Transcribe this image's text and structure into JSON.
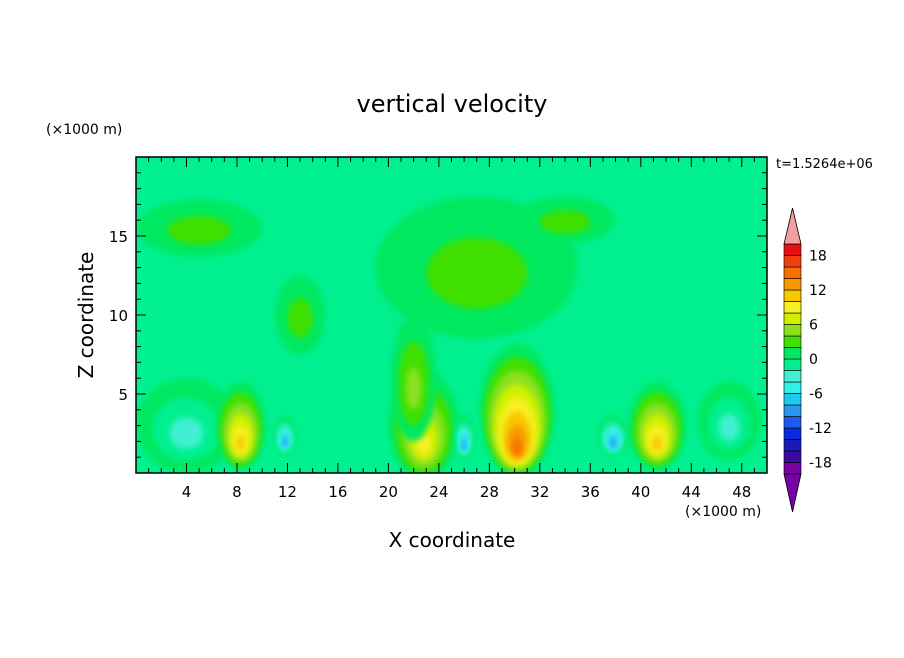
{
  "chart_data": {
    "type": "heatmap",
    "title": "vertical velocity",
    "xlabel": "X coordinate",
    "ylabel": "Z coordinate",
    "x_unit": "(×1000 m)",
    "y_unit": "(×1000 m)",
    "time_label": "t=1.5264e+06",
    "xlim": [
      0,
      50
    ],
    "ylim": [
      0,
      20
    ],
    "x_ticks": [
      4,
      8,
      12,
      16,
      20,
      24,
      28,
      32,
      36,
      40,
      44,
      48
    ],
    "y_ticks": [
      5,
      10,
      15
    ],
    "colorbar": {
      "levels": [
        -20,
        -18,
        -16,
        -14,
        -12,
        -10,
        -8,
        -6,
        -4,
        -2,
        0,
        2,
        4,
        6,
        8,
        10,
        12,
        14,
        16,
        18,
        20
      ],
      "labels": [
        18,
        12,
        6,
        0,
        -6,
        -12,
        -18
      ],
      "colors": [
        "#7a00a8",
        "#3a0aa0",
        "#1a1ab8",
        "#0a2ae0",
        "#1e5af0",
        "#2a96f0",
        "#20c8f0",
        "#30f0e8",
        "#40f0d0",
        "#00f090",
        "#00e860",
        "#40e000",
        "#8ce020",
        "#d0f000",
        "#f8f020",
        "#f8c800",
        "#f89800",
        "#f87000",
        "#f04010",
        "#e81010",
        "#f0a0a0"
      ]
    },
    "features": [
      {
        "name": "upper-left",
        "x": 5,
        "z": 15.5,
        "w": 5,
        "h": 1.8,
        "value": 1
      },
      {
        "name": "upper-center",
        "x": 27,
        "z": 13,
        "w": 8,
        "h": 4.5,
        "value": 1
      },
      {
        "name": "upper-right",
        "x": 34,
        "z": 16,
        "w": 4,
        "h": 1.5,
        "value": 1
      },
      {
        "name": "mid-left",
        "x": 13,
        "z": 10,
        "w": 2,
        "h": 2.5,
        "value": 1
      },
      {
        "name": "lower-left-cyan",
        "x": 4,
        "z": 3,
        "w": 4,
        "h": 3,
        "value": -4
      },
      {
        "name": "updraft-1",
        "x": 8.3,
        "z": 3,
        "w": 2,
        "h": 2.8,
        "value": 10
      },
      {
        "name": "downdraft-1",
        "x": 11.8,
        "z": 2.4,
        "w": 0.9,
        "h": 1.2,
        "value": -10
      },
      {
        "name": "updraft-2",
        "x": 22.8,
        "z": 3,
        "w": 2.8,
        "h": 3.5,
        "value": 8
      },
      {
        "name": "updraft-2b",
        "x": 22,
        "z": 6,
        "w": 1.8,
        "h": 4,
        "value": 4
      },
      {
        "name": "downdraft-2",
        "x": 26,
        "z": 2.3,
        "w": 0.8,
        "h": 1.4,
        "value": -10
      },
      {
        "name": "updraft-3",
        "x": 30.2,
        "z": 4,
        "w": 3,
        "h": 4.2,
        "value": 14
      },
      {
        "name": "downdraft-3",
        "x": 37.8,
        "z": 2.4,
        "w": 1.2,
        "h": 1.3,
        "value": -10
      },
      {
        "name": "updraft-4",
        "x": 41.3,
        "z": 3,
        "w": 2.3,
        "h": 2.8,
        "value": 10
      },
      {
        "name": "right-cyan",
        "x": 47,
        "z": 3.3,
        "w": 2.5,
        "h": 2.5,
        "value": -4
      }
    ]
  }
}
